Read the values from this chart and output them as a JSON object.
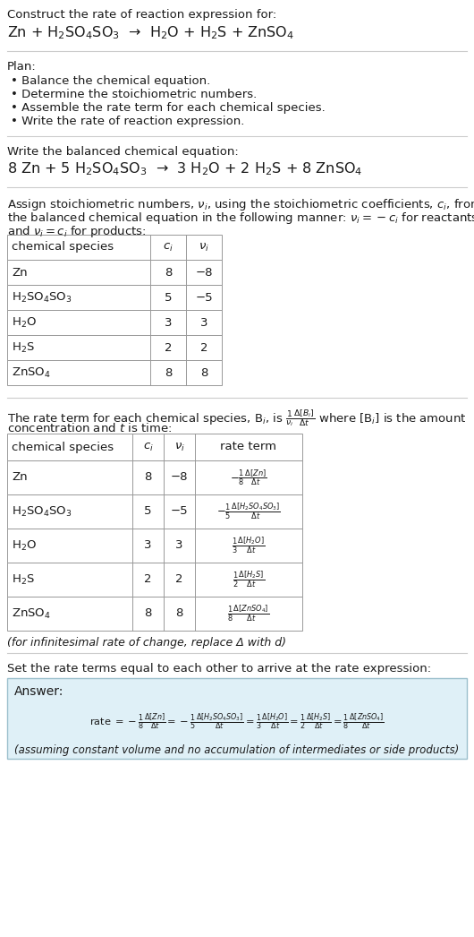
{
  "title_line1": "Construct the rate of reaction expression for:",
  "title_line2": "Zn + H$_2$SO$_4$SO$_3$  →  H$_2$O + H$_2$S + ZnSO$_4$",
  "plan_header": "Plan:",
  "plan_items": [
    "• Balance the chemical equation.",
    "• Determine the stoichiometric numbers.",
    "• Assemble the rate term for each chemical species.",
    "• Write the rate of reaction expression."
  ],
  "balanced_header": "Write the balanced chemical equation:",
  "balanced_eq": "8 Zn + 5 H$_2$SO$_4$SO$_3$  →  3 H$_2$O + 2 H$_2$S + 8 ZnSO$_4$",
  "stoich_intro1": "Assign stoichiometric numbers, $\\nu_i$, using the stoichiometric coefficients, $c_i$, from",
  "stoich_intro2": "the balanced chemical equation in the following manner: $\\nu_i = -c_i$ for reactants",
  "stoich_intro3": "and $\\nu_i = c_i$ for products:",
  "table1_col0": "chemical species",
  "table1_col1": "$c_i$",
  "table1_col2": "$\\nu_i$",
  "table1_rows": [
    [
      "Zn",
      "8",
      "−8"
    ],
    [
      "H$_2$SO$_4$SO$_3$",
      "5",
      "−5"
    ],
    [
      "H$_2$O",
      "3",
      "3"
    ],
    [
      "H$_2$S",
      "2",
      "2"
    ],
    [
      "ZnSO$_4$",
      "8",
      "8"
    ]
  ],
  "rate_intro1": "The rate term for each chemical species, B$_i$, is $\\frac{1}{\\nu_i}\\frac{\\Delta[B_i]}{\\Delta t}$ where [B$_i$] is the amount",
  "rate_intro2": "concentration and $t$ is time:",
  "table2_col0": "chemical species",
  "table2_col1": "$c_i$",
  "table2_col2": "$\\nu_i$",
  "table2_col3": "rate term",
  "table2_rows": [
    [
      "Zn",
      "8",
      "−8",
      "$-\\frac{1}{8}\\frac{\\Delta[Zn]}{\\Delta t}$"
    ],
    [
      "H$_2$SO$_4$SO$_3$",
      "5",
      "−5",
      "$-\\frac{1}{5}\\frac{\\Delta[H_2SO_4SO_3]}{\\Delta t}$"
    ],
    [
      "H$_2$O",
      "3",
      "3",
      "$\\frac{1}{3}\\frac{\\Delta[H_2O]}{\\Delta t}$"
    ],
    [
      "H$_2$S",
      "2",
      "2",
      "$\\frac{1}{2}\\frac{\\Delta[H_2S]}{\\Delta t}$"
    ],
    [
      "ZnSO$_4$",
      "8",
      "8",
      "$\\frac{1}{8}\\frac{\\Delta[ZnSO_4]}{\\Delta t}$"
    ]
  ],
  "infinitesimal_note": "(for infinitesimal rate of change, replace Δ with d)",
  "rate_eq_header": "Set the rate terms equal to each other to arrive at the rate expression:",
  "answer_label": "Answer:",
  "rate_expression": "rate $= -\\frac{1}{8}\\frac{\\Delta[Zn]}{\\Delta t} = -\\frac{1}{5}\\frac{\\Delta[H_2SO_4SO_3]}{\\Delta t} = \\frac{1}{3}\\frac{\\Delta[H_2O]}{\\Delta t} = \\frac{1}{2}\\frac{\\Delta[H_2S]}{\\Delta t} = \\frac{1}{8}\\frac{\\Delta[ZnSO_4]}{\\Delta t}$",
  "assuming_note": "(assuming constant volume and no accumulation of intermediates or side products)",
  "bg_color": "#ffffff",
  "answer_bg": "#dff0f7",
  "grid_color": "#999999",
  "separator_color": "#cccccc"
}
